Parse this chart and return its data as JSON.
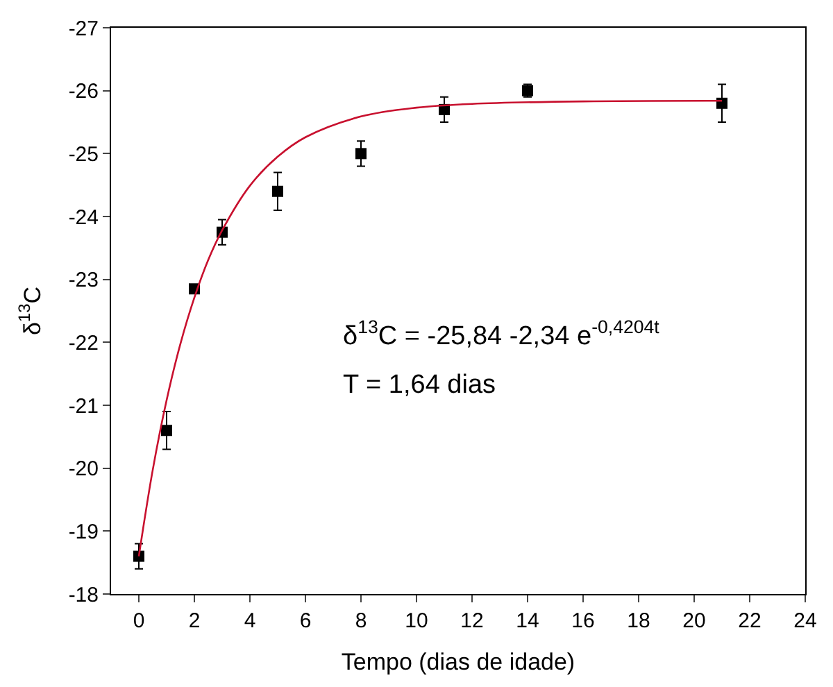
{
  "chart_data": {
    "type": "scatter",
    "xlabel": "Tempo (dias de idade)",
    "ylabel": "δ$^{13}$C",
    "xlim": [
      -1,
      24
    ],
    "xticks": [
      0,
      2,
      4,
      6,
      8,
      10,
      12,
      14,
      16,
      18,
      20,
      22,
      24
    ],
    "ylim": [
      -18,
      -27
    ],
    "yticks": [
      -18,
      -19,
      -20,
      -21,
      -22,
      -23,
      -24,
      -25,
      -26,
      -27
    ],
    "annotations": [
      "δ$^{13}$C = -25,84 -2,34 e$^{-0,4204t}$",
      "T = 1,64 dias"
    ],
    "series": [
      {
        "type": "line",
        "color": "#c8102e",
        "marker": "none",
        "line_style": "solid",
        "x": [
          0,
          0.5,
          1,
          1.5,
          2,
          2.5,
          3,
          4,
          5,
          6,
          8,
          10,
          12,
          16,
          21
        ],
        "values": [
          -18.6,
          -19.97,
          -21.08,
          -21.98,
          -22.71,
          -23.31,
          -23.78,
          -24.49,
          -24.95,
          -25.26,
          -25.59,
          -25.73,
          -25.79,
          -25.83,
          -25.84
        ]
      },
      {
        "color": "#000000",
        "marker": "square",
        "x": [
          0,
          1,
          2,
          3,
          5,
          8,
          11,
          14,
          21
        ],
        "values": [
          -18.6,
          -20.6,
          -22.85,
          -23.75,
          -24.4,
          -25.0,
          -25.7,
          -26.0,
          -25.8
        ],
        "errors": [
          0.2,
          0.3,
          null,
          0.2,
          0.3,
          0.2,
          0.2,
          0.1,
          0.3
        ]
      }
    ]
  }
}
